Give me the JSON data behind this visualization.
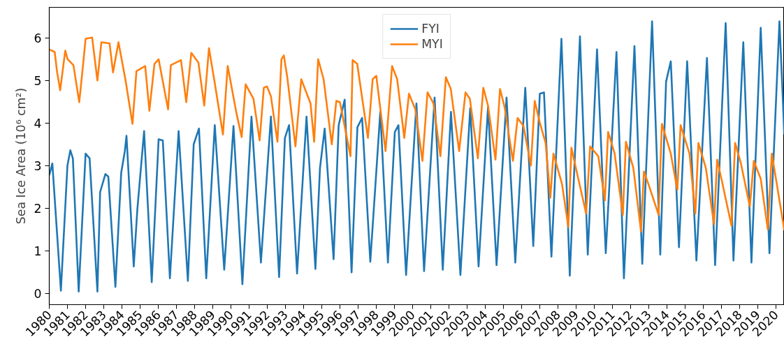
{
  "chart_data": {
    "type": "line",
    "ylabel": "Sea Ice Area (10⁶ cm²)",
    "xlim": [
      1980,
      2020.46
    ],
    "ylim": [
      -0.27,
      6.72
    ],
    "xticks": [
      1980,
      1981,
      1982,
      1983,
      1984,
      1985,
      1986,
      1987,
      1988,
      1989,
      1990,
      1991,
      1992,
      1993,
      1994,
      1995,
      1996,
      1997,
      1998,
      1999,
      2000,
      2001,
      2002,
      2003,
      2004,
      2005,
      2006,
      2007,
      2008,
      2009,
      2010,
      2011,
      2012,
      2013,
      2014,
      2015,
      2016,
      2017,
      2018,
      2019,
      2020
    ],
    "yticks": [
      0,
      1,
      2,
      3,
      4,
      5,
      6
    ],
    "legend": "top center",
    "grid": false,
    "line_style": "solid",
    "marker": "none",
    "series": [
      {
        "name": "FYI",
        "color": "#1f77b4",
        "x": [
          1980.0,
          1980.17,
          1980.64,
          1981.0,
          1981.16,
          1981.3,
          1981.62,
          1982.0,
          1982.22,
          1982.65,
          1982.8,
          1983.09,
          1983.25,
          1983.64,
          1983.96,
          1984.16,
          1984.25,
          1984.65,
          1984.85,
          1985.22,
          1985.64,
          1986.02,
          1986.25,
          1986.64,
          1987.12,
          1987.63,
          1987.95,
          1988.24,
          1988.64,
          1989.11,
          1989.63,
          1990.14,
          1990.63,
          1991.13,
          1991.65,
          1992.2,
          1992.65,
          1992.97,
          1993.2,
          1993.64,
          1994.16,
          1994.65,
          1994.9,
          1995.16,
          1995.65,
          1995.93,
          1996.26,
          1996.64,
          1996.96,
          1997.22,
          1997.67,
          1998.22,
          1998.64,
          1999.02,
          1999.22,
          1999.64,
          2000.21,
          2000.63,
          2001.21,
          2001.66,
          2002.11,
          2002.63,
          2003.17,
          2003.63,
          2004.15,
          2004.62,
          2005.17,
          2005.65,
          2006.2,
          2006.64,
          2007.0,
          2007.23,
          2007.64,
          2008.19,
          2008.65,
          2009.21,
          2009.64,
          2010.15,
          2010.63,
          2011.22,
          2011.63,
          2012.21,
          2012.64,
          2013.18,
          2013.63,
          2013.95,
          2014.21,
          2014.66,
          2015.11,
          2015.62,
          2016.2,
          2016.65,
          2017.23,
          2017.66,
          2018.2,
          2018.65,
          2019.16,
          2019.64,
          2020.19,
          2020.46
        ],
        "values": [
          2.77,
          3.05,
          0.06,
          3.0,
          3.36,
          3.17,
          0.04,
          3.28,
          3.17,
          0.04,
          2.38,
          2.8,
          2.74,
          0.15,
          2.83,
          3.34,
          3.7,
          0.63,
          1.98,
          3.81,
          0.26,
          3.62,
          3.59,
          0.35,
          3.81,
          0.29,
          3.5,
          3.87,
          0.35,
          3.95,
          0.55,
          3.93,
          0.21,
          4.15,
          0.72,
          4.15,
          0.38,
          3.65,
          3.95,
          0.46,
          4.15,
          0.57,
          2.94,
          3.87,
          0.8,
          3.95,
          4.55,
          0.49,
          3.9,
          4.12,
          0.74,
          4.26,
          0.72,
          3.79,
          3.95,
          0.43,
          4.46,
          0.52,
          4.6,
          0.55,
          4.26,
          0.43,
          4.35,
          0.63,
          4.38,
          0.66,
          4.6,
          0.72,
          4.83,
          1.11,
          4.69,
          4.72,
          0.86,
          5.98,
          0.41,
          6.04,
          0.91,
          5.73,
          0.94,
          5.67,
          0.35,
          5.81,
          0.69,
          6.39,
          0.91,
          4.97,
          5.45,
          1.08,
          5.45,
          0.77,
          5.53,
          0.66,
          6.35,
          0.77,
          5.9,
          0.72,
          6.24,
          0.94,
          6.39,
          3.73
        ]
      },
      {
        "name": "MYI",
        "color": "#ff7f0e",
        "x": [
          1980.0,
          1980.3,
          1980.43,
          1980.6,
          1980.88,
          1981.01,
          1981.33,
          1981.65,
          1981.88,
          1982.0,
          1982.36,
          1982.65,
          1982.87,
          1983.32,
          1983.51,
          1983.81,
          1984.2,
          1984.58,
          1984.8,
          1985.28,
          1985.51,
          1985.79,
          1986.02,
          1986.54,
          1986.69,
          1987.25,
          1987.54,
          1987.82,
          1988.21,
          1988.53,
          1988.79,
          1989.11,
          1989.56,
          1989.82,
          1990.3,
          1990.59,
          1990.81,
          1991.24,
          1991.58,
          1991.81,
          1991.98,
          1992.2,
          1992.56,
          1992.78,
          1992.91,
          1993.1,
          1993.55,
          1993.87,
          1994.38,
          1994.58,
          1994.8,
          1995.1,
          1995.55,
          1995.8,
          1996.0,
          1996.58,
          1996.7,
          1996.95,
          1997.54,
          1997.8,
          1998.0,
          1998.51,
          1998.87,
          1999.15,
          1999.54,
          1999.8,
          2000.15,
          2000.54,
          2000.82,
          2001.15,
          2001.53,
          2001.83,
          2002.1,
          2002.56,
          2002.91,
          2003.15,
          2003.59,
          2003.89,
          2004.15,
          2004.56,
          2004.81,
          2005.06,
          2005.52,
          2005.78,
          2006.1,
          2006.51,
          2006.72,
          2007.0,
          2007.32,
          2007.58,
          2007.75,
          2008.22,
          2008.57,
          2008.74,
          2008.93,
          2009.55,
          2009.77,
          2010.22,
          2010.58,
          2010.76,
          2011.12,
          2011.57,
          2011.74,
          2012.15,
          2012.57,
          2012.73,
          2012.99,
          2013.54,
          2013.72,
          2014.21,
          2014.57,
          2014.75,
          2015.24,
          2015.56,
          2015.73,
          2016.14,
          2016.59,
          2016.76,
          2017.04,
          2017.55,
          2017.75,
          2018.07,
          2018.56,
          2018.78,
          2019.16,
          2019.55,
          2019.77,
          2020.46
        ],
        "values": [
          5.73,
          5.67,
          5.2,
          4.77,
          5.7,
          5.5,
          5.36,
          4.49,
          5.45,
          5.98,
          6.01,
          5.0,
          5.9,
          5.87,
          5.19,
          5.9,
          5.0,
          3.98,
          5.22,
          5.34,
          4.29,
          5.39,
          5.5,
          4.32,
          5.36,
          5.48,
          4.49,
          5.65,
          5.42,
          4.41,
          5.76,
          4.94,
          3.73,
          5.34,
          4.24,
          3.67,
          4.91,
          4.57,
          3.59,
          4.83,
          4.86,
          4.63,
          3.56,
          5.5,
          5.59,
          5.08,
          3.45,
          5.03,
          4.46,
          3.56,
          5.5,
          5.03,
          3.5,
          4.52,
          4.49,
          3.22,
          5.48,
          5.39,
          3.65,
          5.03,
          5.11,
          3.34,
          5.34,
          5.03,
          3.65,
          4.69,
          4.32,
          3.11,
          4.72,
          4.46,
          3.22,
          5.08,
          4.8,
          3.34,
          4.72,
          4.57,
          3.17,
          4.83,
          4.41,
          3.14,
          4.8,
          4.38,
          3.11,
          4.12,
          3.93,
          3.0,
          4.52,
          4.01,
          3.53,
          2.24,
          3.28,
          2.57,
          1.56,
          3.42,
          3.05,
          1.87,
          3.45,
          3.22,
          2.18,
          3.79,
          3.28,
          1.84,
          3.56,
          2.94,
          1.45,
          2.86,
          2.55,
          1.84,
          3.98,
          3.28,
          2.43,
          3.95,
          3.28,
          1.87,
          3.53,
          2.94,
          1.62,
          3.14,
          2.6,
          1.59,
          3.53,
          3.05,
          2.04,
          3.11,
          2.69,
          1.5,
          3.28,
          1.48
        ]
      }
    ]
  }
}
